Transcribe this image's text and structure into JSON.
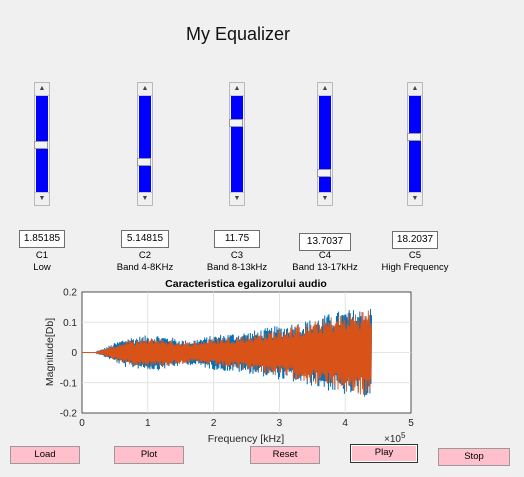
{
  "title": "My Equalizer",
  "sliders": [
    {
      "name": "C1",
      "desc": "Low",
      "value": "1.85185",
      "level": 0.5
    },
    {
      "name": "C2",
      "desc": "Band 4-8KHz",
      "value": "5.14815",
      "level": 0.3
    },
    {
      "name": "C3",
      "desc": "Band 8-13kHz",
      "value": "11.75",
      "level": 0.74
    },
    {
      "name": "C4",
      "desc": "Band 13-17kHz",
      "value": "13.7037",
      "level": 0.18
    },
    {
      "name": "C5",
      "desc": "High Frequency",
      "value": "18.2037",
      "level": 0.58
    }
  ],
  "buttons": {
    "load": "Load",
    "plot": "Plot",
    "reset": "Reset",
    "play": "Play",
    "stop": "Stop"
  },
  "chart_data": {
    "type": "line",
    "title": "Caracteristica egalizorului audio",
    "xlabel": "Frequency [kHz]",
    "ylabel": "Magnitude[Db]",
    "x_multiplier": "×10",
    "x_multiplier_exp": "5",
    "xlim": [
      0,
      5
    ],
    "ylim": [
      -0.2,
      0.2
    ],
    "xticks": [
      "0",
      "1",
      "2",
      "3",
      "4",
      "5"
    ],
    "yticks": [
      "0.2",
      "0.1",
      "0",
      "-0.1",
      "-0.2"
    ],
    "grid": true,
    "series": [
      {
        "color": "#0072bd",
        "x": [
          0.2,
          4.4
        ],
        "envelope_max": [
          0,
          0.05,
          0.06,
          0.04,
          0.06,
          0.07,
          0.09,
          0.11,
          0.14,
          0.15
        ]
      },
      {
        "color": "#d95319",
        "x": [
          0.2,
          4.4
        ],
        "envelope_max": [
          0,
          0.04,
          0.05,
          0.035,
          0.05,
          0.06,
          0.08,
          0.1,
          0.13,
          0.15
        ]
      }
    ]
  }
}
